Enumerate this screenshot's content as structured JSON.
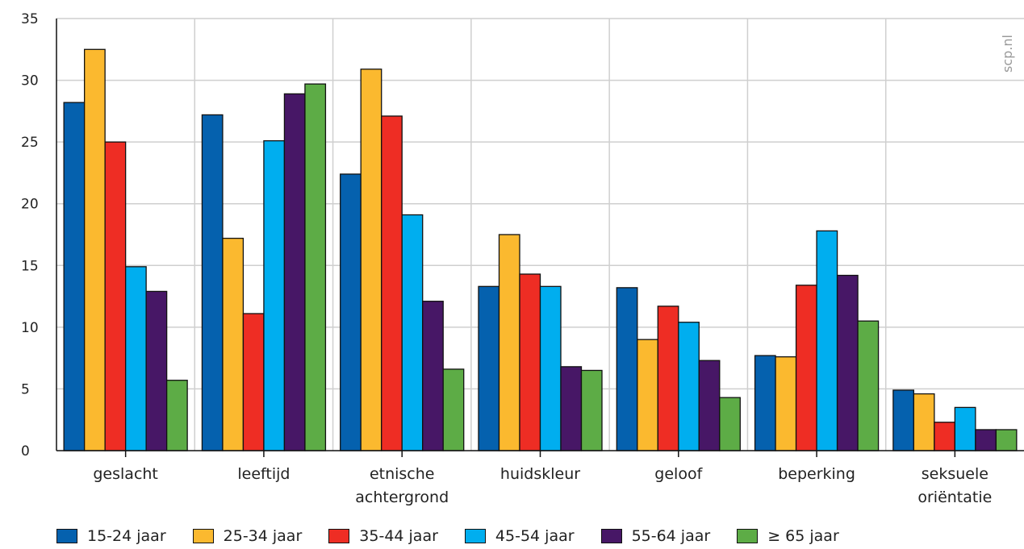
{
  "watermark": "scp.nl",
  "chart_data": {
    "type": "bar",
    "ylim": [
      0,
      35
    ],
    "yticks": [
      0,
      5,
      10,
      15,
      20,
      25,
      30,
      35
    ],
    "grid": true,
    "legend_position": "bottom",
    "categories": [
      [
        "geslacht"
      ],
      [
        "leeftijd"
      ],
      [
        "etnische",
        "achtergrond"
      ],
      [
        "huidskleur"
      ],
      [
        "geloof"
      ],
      [
        "beperking"
      ],
      [
        "seksuele",
        "oriëntatie"
      ]
    ],
    "series": [
      {
        "name": "15-24 jaar",
        "color": "#0561ae",
        "values": [
          28.2,
          27.2,
          22.4,
          13.3,
          13.2,
          7.7,
          4.9
        ]
      },
      {
        "name": "25-34 jaar",
        "color": "#fbb92f",
        "values": [
          32.5,
          17.2,
          30.9,
          17.5,
          9.0,
          7.6,
          4.6
        ]
      },
      {
        "name": "35-44 jaar",
        "color": "#ee2d24",
        "values": [
          25.0,
          11.1,
          27.1,
          14.3,
          11.7,
          13.4,
          2.3
        ]
      },
      {
        "name": "45-54 jaar",
        "color": "#00aeef",
        "values": [
          14.9,
          25.1,
          19.1,
          13.3,
          10.4,
          17.8,
          3.5
        ]
      },
      {
        "name": "55-64 jaar",
        "color": "#471766",
        "values": [
          12.9,
          28.9,
          12.1,
          6.8,
          7.3,
          14.2,
          1.7
        ]
      },
      {
        "name": "≥ 65 jaar",
        "color": "#5dac46",
        "values": [
          5.7,
          29.7,
          6.6,
          6.5,
          4.3,
          10.5,
          1.7
        ]
      }
    ]
  }
}
